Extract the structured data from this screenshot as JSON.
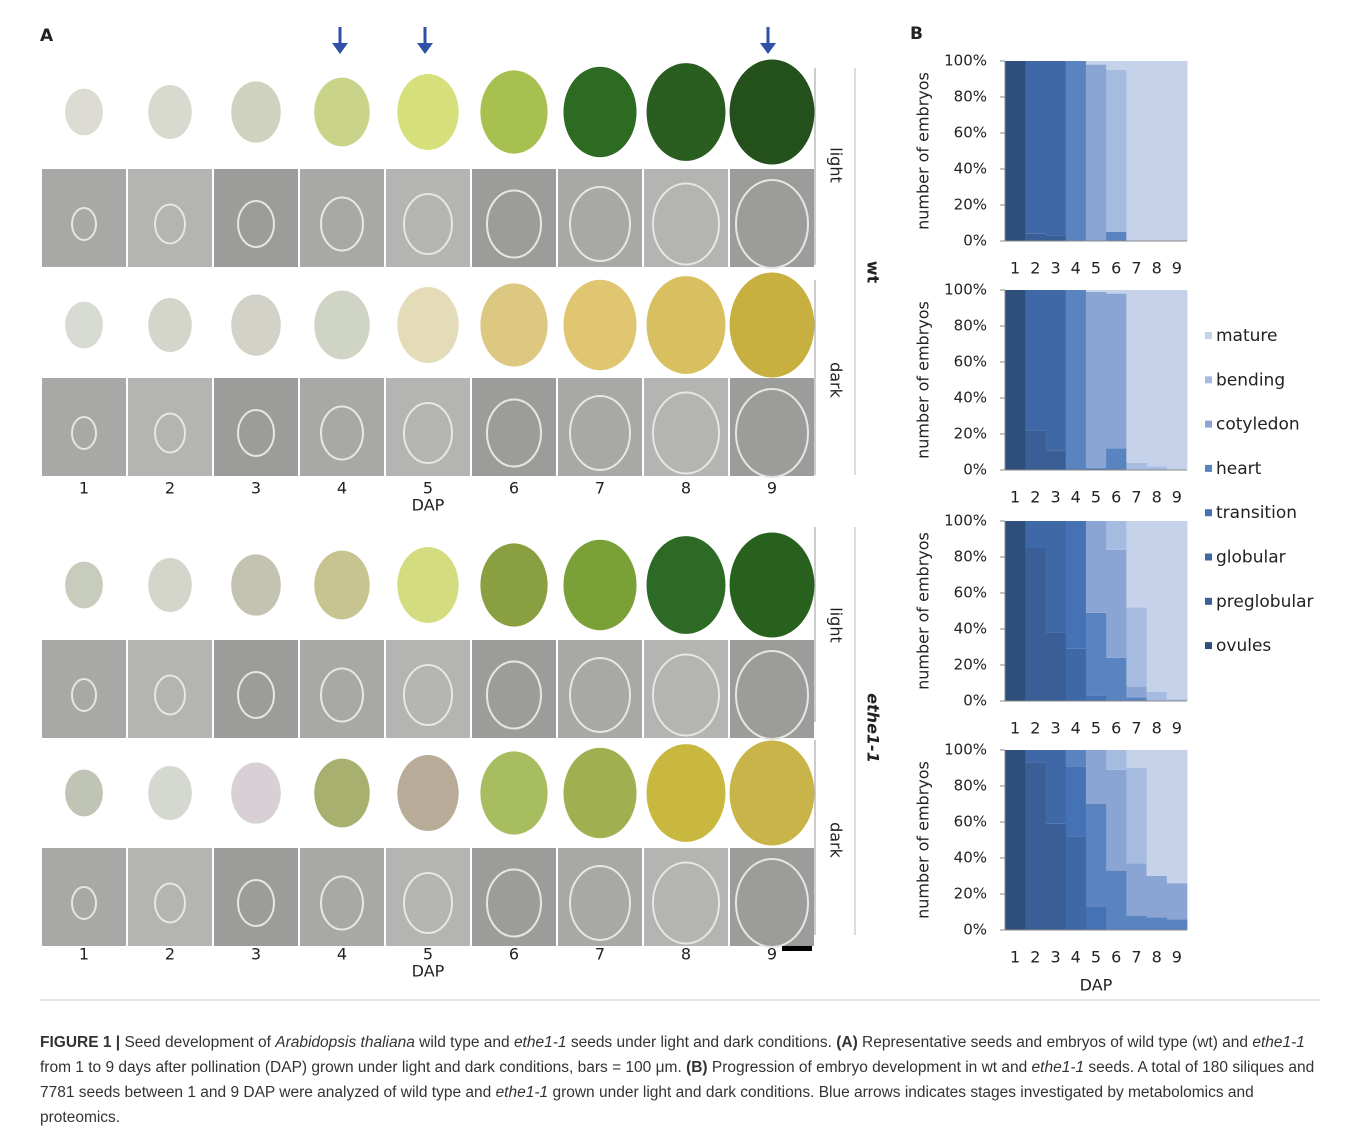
{
  "panel_a": {
    "label": "A",
    "columns": [
      "1",
      "2",
      "3",
      "4",
      "5",
      "6",
      "7",
      "8",
      "9"
    ],
    "x_label": "DAP",
    "rows": [
      "light",
      "dark",
      "light",
      "dark"
    ],
    "groups": [
      "wt",
      "ethe1-1"
    ]
  },
  "panel_b_label": "B",
  "chart_data": [
    {
      "type": "stacked-bar",
      "y_label": "number of embryos",
      "categories": [
        "1",
        "2",
        "3",
        "4",
        "5",
        "6",
        "7",
        "8",
        "9"
      ],
      "ylim": [
        0,
        100
      ],
      "yticks": [
        {
          "value": 0,
          "label": "0%"
        },
        {
          "value": 20,
          "label": "20%"
        },
        {
          "value": 40,
          "label": "40%"
        },
        {
          "value": 60,
          "label": "60%"
        },
        {
          "value": 80,
          "label": "80%"
        },
        {
          "value": 100,
          "label": "100%"
        }
      ],
      "series": [
        {
          "name": "ovules",
          "color": "#2e4f7c",
          "values": [
            100,
            0,
            0,
            0,
            0,
            0,
            0,
            0,
            0
          ]
        },
        {
          "name": "preglobular",
          "color": "#395f96",
          "values": [
            0,
            4,
            3,
            0,
            0,
            0,
            0,
            0,
            0
          ]
        },
        {
          "name": "globular",
          "color": "#3e68a6",
          "values": [
            0,
            96,
            97,
            0,
            0,
            0,
            0,
            0,
            0
          ]
        },
        {
          "name": "transition",
          "color": "#4472b4",
          "values": [
            0,
            0,
            0,
            0,
            0,
            0,
            0,
            0,
            0
          ]
        },
        {
          "name": "heart",
          "color": "#5a84c0",
          "values": [
            0,
            0,
            0,
            100,
            0,
            5,
            0,
            0,
            0
          ]
        },
        {
          "name": "cotyledon",
          "color": "#8aa5d3",
          "values": [
            0,
            0,
            0,
            0,
            98,
            0,
            0,
            0,
            0
          ]
        },
        {
          "name": "bending",
          "color": "#a6bbe0",
          "values": [
            0,
            0,
            0,
            0,
            0,
            90,
            0,
            0,
            0
          ]
        },
        {
          "name": "mature",
          "color": "#c6d2ea",
          "values": [
            0,
            0,
            0,
            0,
            2,
            5,
            100,
            100,
            100
          ]
        }
      ]
    },
    {
      "type": "stacked-bar",
      "y_label": "number of embryos",
      "categories": [
        "1",
        "2",
        "3",
        "4",
        "5",
        "6",
        "7",
        "8",
        "9"
      ],
      "ylim": [
        0,
        100
      ],
      "yticks": [
        {
          "value": 0,
          "label": "0%"
        },
        {
          "value": 20,
          "label": "20%"
        },
        {
          "value": 40,
          "label": "40%"
        },
        {
          "value": 60,
          "label": "60%"
        },
        {
          "value": 80,
          "label": "80%"
        },
        {
          "value": 100,
          "label": "100%"
        }
      ],
      "series": [
        {
          "name": "ovules",
          "color": "#2e4f7c",
          "values": [
            100,
            0,
            0,
            0,
            0,
            0,
            0,
            0,
            0
          ]
        },
        {
          "name": "preglobular",
          "color": "#395f96",
          "values": [
            0,
            22,
            11,
            0,
            0,
            0,
            0,
            0,
            0
          ]
        },
        {
          "name": "globular",
          "color": "#3e68a6",
          "values": [
            0,
            78,
            89,
            0,
            0,
            0,
            0,
            0,
            0
          ]
        },
        {
          "name": "transition",
          "color": "#4472b4",
          "values": [
            0,
            0,
            0,
            0,
            1,
            0,
            0,
            0,
            0
          ]
        },
        {
          "name": "heart",
          "color": "#5a84c0",
          "values": [
            0,
            0,
            0,
            100,
            0,
            12,
            0,
            0,
            0
          ]
        },
        {
          "name": "cotyledon",
          "color": "#8aa5d3",
          "values": [
            0,
            0,
            0,
            0,
            98,
            86,
            0,
            0,
            0
          ]
        },
        {
          "name": "bending",
          "color": "#a6bbe0",
          "values": [
            0,
            0,
            0,
            0,
            0,
            0,
            4,
            2,
            0
          ]
        },
        {
          "name": "mature",
          "color": "#c6d2ea",
          "values": [
            0,
            0,
            0,
            0,
            1,
            2,
            96,
            98,
            100
          ]
        }
      ]
    },
    {
      "type": "stacked-bar",
      "y_label": "number of embryos",
      "categories": [
        "1",
        "2",
        "3",
        "4",
        "5",
        "6",
        "7",
        "8",
        "9"
      ],
      "ylim": [
        0,
        100
      ],
      "yticks": [
        {
          "value": 0,
          "label": "0%"
        },
        {
          "value": 20,
          "label": "20%"
        },
        {
          "value": 40,
          "label": "40%"
        },
        {
          "value": 60,
          "label": "60%"
        },
        {
          "value": 80,
          "label": "80%"
        },
        {
          "value": 100,
          "label": "100%"
        }
      ],
      "series": [
        {
          "name": "ovules",
          "color": "#2e4f7c",
          "values": [
            100,
            0,
            0,
            0,
            0,
            0,
            0,
            0,
            0
          ]
        },
        {
          "name": "preglobular",
          "color": "#395f96",
          "values": [
            0,
            85,
            38,
            0,
            0,
            0,
            0,
            0,
            0
          ]
        },
        {
          "name": "globular",
          "color": "#3e68a6",
          "values": [
            0,
            15,
            62,
            29,
            0,
            0,
            0,
            0,
            0
          ]
        },
        {
          "name": "transition",
          "color": "#4472b4",
          "values": [
            0,
            0,
            0,
            71,
            3,
            0,
            0,
            0,
            0
          ]
        },
        {
          "name": "heart",
          "color": "#5a84c0",
          "values": [
            0,
            0,
            0,
            0,
            46,
            24,
            2,
            0,
            0
          ]
        },
        {
          "name": "cotyledon",
          "color": "#8aa5d3",
          "values": [
            0,
            0,
            0,
            0,
            51,
            60,
            6,
            0,
            0
          ]
        },
        {
          "name": "bending",
          "color": "#a6bbe0",
          "values": [
            0,
            0,
            0,
            0,
            0,
            16,
            44,
            5,
            1
          ]
        },
        {
          "name": "mature",
          "color": "#c6d2ea",
          "values": [
            0,
            0,
            0,
            0,
            0,
            0,
            48,
            95,
            99
          ]
        }
      ]
    },
    {
      "type": "stacked-bar",
      "y_label": "number of embryos",
      "x_label": "DAP",
      "categories": [
        "1",
        "2",
        "3",
        "4",
        "5",
        "6",
        "7",
        "8",
        "9"
      ],
      "ylim": [
        0,
        100
      ],
      "yticks": [
        {
          "value": 0,
          "label": "0%"
        },
        {
          "value": 20,
          "label": "20%"
        },
        {
          "value": 40,
          "label": "40%"
        },
        {
          "value": 60,
          "label": "60%"
        },
        {
          "value": 80,
          "label": "80%"
        },
        {
          "value": 100,
          "label": "100%"
        }
      ],
      "series": [
        {
          "name": "ovules",
          "color": "#2e4f7c",
          "values": [
            100,
            0,
            0,
            0,
            0,
            0,
            0,
            0,
            0
          ]
        },
        {
          "name": "preglobular",
          "color": "#395f96",
          "values": [
            0,
            93,
            59,
            0,
            0,
            0,
            0,
            0,
            0
          ]
        },
        {
          "name": "globular",
          "color": "#3e68a6",
          "values": [
            0,
            7,
            41,
            52,
            0,
            0,
            0,
            0,
            0
          ]
        },
        {
          "name": "transition",
          "color": "#4472b4",
          "values": [
            0,
            0,
            0,
            39,
            13,
            0,
            0,
            0,
            0
          ]
        },
        {
          "name": "heart",
          "color": "#5a84c0",
          "values": [
            0,
            0,
            0,
            9,
            57,
            33,
            8,
            7,
            6
          ]
        },
        {
          "name": "cotyledon",
          "color": "#8aa5d3",
          "values": [
            0,
            0,
            0,
            0,
            30,
            56,
            29,
            23,
            20
          ]
        },
        {
          "name": "bending",
          "color": "#a6bbe0",
          "values": [
            0,
            0,
            0,
            0,
            0,
            11,
            53,
            0,
            0
          ]
        },
        {
          "name": "mature",
          "color": "#c6d2ea",
          "values": [
            0,
            0,
            0,
            0,
            0,
            0,
            10,
            70,
            74
          ]
        }
      ]
    }
  ],
  "caption": [
    {
      "text": "FIGURE 1 |",
      "style": "bold"
    },
    {
      "text": " Seed development of ",
      "style": "normal"
    },
    {
      "text": "Arabidopsis thaliana",
      "style": "italic"
    },
    {
      "text": " wild type and ",
      "style": "normal"
    },
    {
      "text": "ethe1-1",
      "style": "italic"
    },
    {
      "text": " seeds under light and dark conditions. ",
      "style": "normal"
    },
    {
      "text": "(A)",
      "style": "bold"
    },
    {
      "text": " Representative seeds and embryos of wild type (wt) and ",
      "style": "normal"
    },
    {
      "text": "ethe1-1",
      "style": "italic"
    },
    {
      "text": " from 1 to 9 days after pollination (DAP) grown under light and dark conditions, bars = 100 μm. ",
      "style": "normal"
    },
    {
      "text": "(B)",
      "style": "bold"
    },
    {
      "text": " Progression of embryo development in wt and ",
      "style": "normal"
    },
    {
      "text": "ethe1-1",
      "style": "italic"
    },
    {
      "text": " seeds. A total of 180 siliques and 7781 seeds between 1 and 9 DAP were analyzed of wild type and ",
      "style": "normal"
    },
    {
      "text": "ethe1-1",
      "style": "italic"
    },
    {
      "text": " grown under light and dark conditions. Blue arrows indicates stages investigated by metabolomics and proteomics.",
      "style": "normal"
    }
  ]
}
